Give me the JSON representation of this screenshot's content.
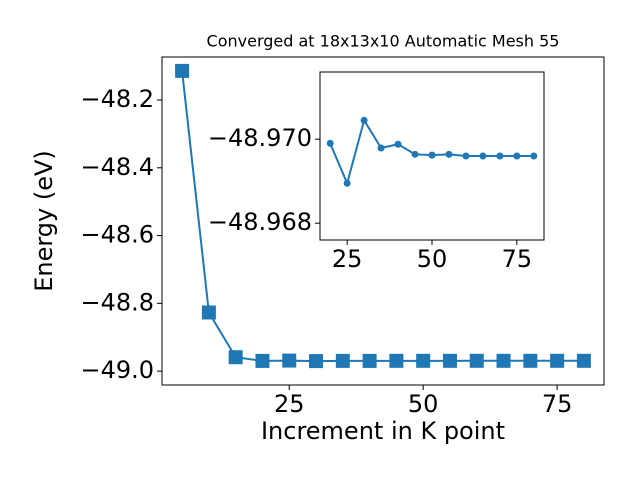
{
  "chart_data": [
    {
      "type": "line",
      "title": "Converged at 18x13x10 Automatic Mesh 55",
      "x_label": "Increment in K point",
      "y_label": "Energy (eV)",
      "x": [
        5,
        10,
        15,
        20,
        25,
        30,
        35,
        40,
        45,
        50,
        55,
        60,
        65,
        70,
        75,
        80
      ],
      "series": [
        {
          "color": "#1f77b4",
          "marker": "square",
          "values": [
            -48.114,
            -48.827,
            -48.959,
            -48.9699,
            -48.96895,
            -48.97045,
            -48.96979,
            -48.96988,
            -48.96964,
            -48.96962,
            -48.96964,
            -48.9696,
            -48.9696,
            -48.9696,
            -48.9696,
            -48.9696
          ]
        }
      ],
      "xlim": [
        1.25,
        83.75
      ],
      "ylim": [
        -49.041,
        -48.073
      ],
      "xticks": [
        25,
        50,
        75
      ],
      "yticks": [
        {
          "value": -49.0,
          "label": "−49.0"
        },
        {
          "value": -48.8,
          "label": "−48.8"
        },
        {
          "value": -48.6,
          "label": "−48.6"
        },
        {
          "value": -48.4,
          "label": "−48.4"
        },
        {
          "value": -48.2,
          "label": "−48.2"
        }
      ]
    },
    {
      "type": "line",
      "x": [
        20,
        25,
        30,
        35,
        40,
        45,
        50,
        55,
        60,
        65,
        70,
        75,
        80
      ],
      "series": [
        {
          "color": "#1f77b4",
          "marker": "circle",
          "values": [
            -48.9699,
            -48.96895,
            -48.97045,
            -48.96979,
            -48.96988,
            -48.96964,
            -48.96962,
            -48.96964,
            -48.9696,
            -48.9696,
            -48.9696,
            -48.9696,
            -48.9696
          ]
        }
      ],
      "xlim": [
        17,
        83
      ],
      "ylim": [
        -48.9716,
        -48.9676
      ],
      "y_inverted": true,
      "xticks": [
        25,
        50,
        75
      ],
      "yticks": [
        {
          "value": -48.97,
          "label": "−48.970"
        },
        {
          "value": -48.968,
          "label": "−48.968"
        }
      ]
    }
  ]
}
